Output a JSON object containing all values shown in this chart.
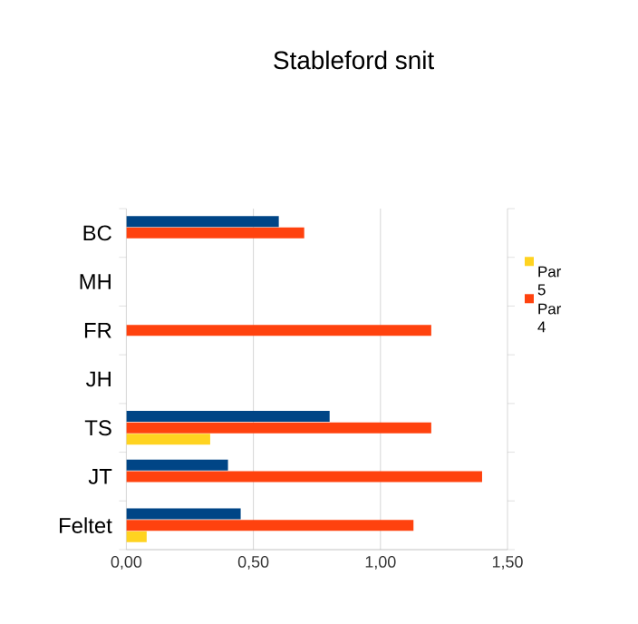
{
  "chart_data": {
    "type": "bar",
    "orientation": "horizontal",
    "title": "Stableford snit",
    "categories": [
      "BC",
      "MH",
      "FR",
      "JH",
      "TS",
      "JT",
      "Feltet"
    ],
    "series": [
      {
        "name": "Par 5",
        "color": "#ffd320",
        "values": [
          null,
          null,
          null,
          null,
          0.33,
          null,
          0.08
        ]
      },
      {
        "name": "Par 4",
        "color": "#ff420e",
        "values": [
          0.7,
          null,
          1.2,
          null,
          1.2,
          1.4,
          1.13
        ]
      },
      {
        "color": "#004586",
        "values": [
          0.6,
          null,
          null,
          null,
          0.8,
          0.4,
          0.45
        ]
      }
    ],
    "xlim": [
      0,
      1.5
    ],
    "xticks": [
      {
        "value": 0,
        "label": "0,00"
      },
      {
        "value": 0.5,
        "label": "0,50"
      },
      {
        "value": 1,
        "label": "1,00"
      },
      {
        "value": 1.5,
        "label": "1,50"
      }
    ],
    "grid": "x",
    "legend": "right"
  }
}
